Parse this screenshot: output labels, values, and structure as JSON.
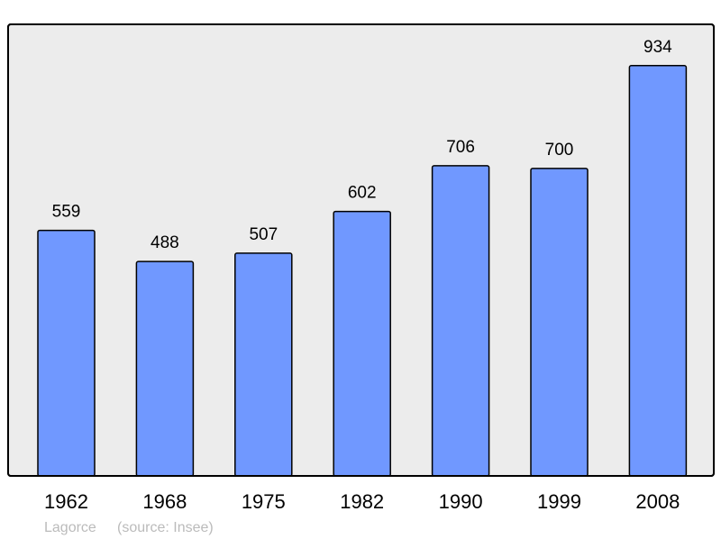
{
  "chart_data": {
    "type": "bar",
    "categories": [
      "1962",
      "1968",
      "1975",
      "1982",
      "1990",
      "1999",
      "2008"
    ],
    "values": [
      559,
      488,
      507,
      602,
      706,
      700,
      934
    ],
    "data_labels": [
      "559",
      "488",
      "507",
      "602",
      "706",
      "700",
      "934"
    ],
    "title": "",
    "xlabel": "",
    "ylabel": "",
    "ylim": [
      0,
      1028
    ],
    "grid": false,
    "legend": "none",
    "bar_color": "#7098ff",
    "plot_background": "#ececec",
    "footer": {
      "place": "Lagorce",
      "source": "(source: Insee)"
    }
  }
}
